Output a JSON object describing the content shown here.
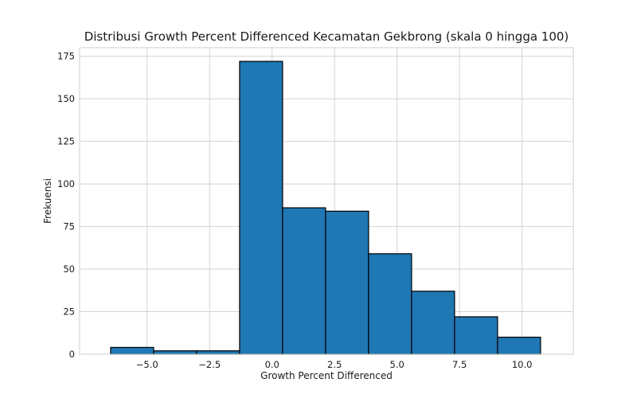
{
  "chart_data": {
    "type": "bar",
    "subtype": "histogram",
    "title": "Distribusi Growth Percent Differenced Kecamatan Gekbrong (skala 0 hingga 100)",
    "xlabel": "Growth Percent Differenced",
    "ylabel": "Frekuensi",
    "xlim": [
      -7.7,
      12.05
    ],
    "ylim": [
      0,
      180
    ],
    "x_ticks": [
      -5.0,
      -2.5,
      0.0,
      2.5,
      5.0,
      7.5,
      10.0
    ],
    "x_tick_labels": [
      "−5.0",
      "−2.5",
      "0.0",
      "2.5",
      "5.0",
      "7.5",
      "10.0"
    ],
    "y_ticks": [
      0,
      25,
      50,
      75,
      100,
      125,
      150,
      175
    ],
    "y_tick_labels": [
      "0",
      "25",
      "50",
      "75",
      "100",
      "125",
      "150",
      "175"
    ],
    "bin_edges": [
      -6.46,
      -4.74,
      -3.02,
      -1.3,
      0.42,
      2.14,
      3.86,
      5.58,
      7.3,
      9.02,
      10.74
    ],
    "values": [
      4,
      2,
      2,
      172,
      86,
      84,
      59,
      37,
      22,
      10
    ],
    "bar_color": "#1f77b4",
    "edge_color": "#000000",
    "grid": true,
    "legend": "none"
  }
}
